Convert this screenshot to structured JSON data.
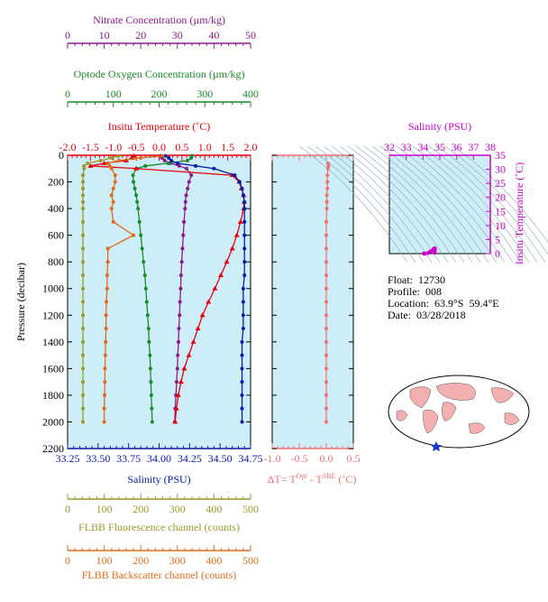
{
  "float_info": {
    "float": "Float:  12730",
    "profile": "Profile:  008",
    "location": "Location:  63.9°S  59.4°E",
    "date": "Date:  03/28/2018"
  },
  "colors": {
    "nitrate": "#8b1a8b",
    "oxygen": "#1a8a2a",
    "temperature": "#e8000b",
    "salinity": "#0a1aa8",
    "fluorescence": "#9a9a2a",
    "backscatter": "#e06a1a",
    "delta_t": "#f07070",
    "ts_axis": "#cc00cc",
    "panel_bg": "#cdeef8",
    "land": "#f4b0b0"
  },
  "axes": {
    "nitrate": {
      "label": "Nitrate Concentration (µm/kg)",
      "range": [
        0,
        50
      ],
      "ticks": [
        "0",
        "10",
        "20",
        "30",
        "40",
        "50"
      ]
    },
    "oxygen": {
      "label": "Optode Oxygen Concentration (µm/kg)",
      "range": [
        0,
        400
      ],
      "ticks": [
        "0",
        "100",
        "200",
        "300",
        "400"
      ]
    },
    "temperature": {
      "label": "Insitu Temperature (˚C)",
      "range": [
        -2.0,
        2.0
      ],
      "ticks": [
        "-2.0",
        "-1.5",
        "-1.0",
        "-0.5",
        "0.0",
        "0.5",
        "1.0",
        "1.5",
        "2.0"
      ]
    },
    "salinity": {
      "label": "Salinity (PSU)",
      "range": [
        33.25,
        34.75
      ],
      "ticks": [
        "33.25",
        "33.50",
        "33.75",
        "34.00",
        "34.25",
        "34.50",
        "34.75"
      ]
    },
    "pressure": {
      "label": "Pressure (decibar)",
      "range": [
        0,
        2200
      ],
      "ticks": [
        "0",
        "200",
        "400",
        "600",
        "800",
        "1000",
        "1200",
        "1400",
        "1600",
        "1800",
        "2000",
        "2200"
      ]
    },
    "fluorescence": {
      "label": "FLBB Fluorescence channel (counts)",
      "range": [
        0,
        500
      ],
      "ticks": [
        "0",
        "100",
        "200",
        "300",
        "400",
        "500"
      ]
    },
    "backscatter": {
      "label": "FLBB Backscatter channel (counts)",
      "range": [
        0,
        500
      ],
      "ticks": [
        "0",
        "100",
        "200",
        "300",
        "400",
        "500"
      ]
    },
    "delta_t": {
      "label_main": "ΔT= T",
      "label_sup1": "Opt",
      "label_mid": " - T",
      "label_sup2": "SBE",
      "label_end": " (˚C)",
      "range": [
        -1.0,
        0.5
      ],
      "ticks": [
        "-1.0",
        "-0.5",
        "0.0",
        "0.5"
      ]
    },
    "ts_salinity": {
      "label": "Salinity (PSU)",
      "range": [
        32,
        38
      ],
      "ticks": [
        "32",
        "33",
        "34",
        "35",
        "36",
        "37",
        "38"
      ]
    },
    "ts_temperature": {
      "label": "Insitu Temperature (˚C)",
      "range": [
        0,
        35
      ],
      "ticks": [
        "0",
        "5",
        "10",
        "15",
        "20",
        "25",
        "30",
        "35"
      ]
    }
  },
  "chart_data": [
    {
      "type": "line",
      "title": "",
      "ylabel": "Pressure (decibar)",
      "ylim": [
        0,
        2200
      ],
      "y_inverted": true,
      "pressure": [
        5,
        20,
        40,
        60,
        80,
        100,
        150,
        200,
        250,
        300,
        350,
        400,
        500,
        600,
        700,
        800,
        900,
        1000,
        1100,
        1200,
        1300,
        1400,
        1500,
        1600,
        1700,
        1800,
        1900,
        2000
      ],
      "series": [
        {
          "name": "Nitrate",
          "axis": "nitrate",
          "values": [
            25.5,
            25.8,
            26.5,
            28.0,
            30.5,
            32.5,
            33.8,
            33.2,
            32.8,
            32.4,
            32.2,
            32.1,
            31.8,
            31.6,
            31.4,
            31.2,
            31.0,
            30.9,
            30.7,
            30.6,
            30.4,
            30.3,
            30.1,
            30.0,
            29.8,
            29.6,
            29.4,
            29.3
          ]
        },
        {
          "name": "Oxygen",
          "axis": "oxygen",
          "values": [
            272,
            270,
            262,
            220,
            170,
            150,
            143,
            144,
            147,
            150,
            152,
            154,
            157,
            160,
            163,
            166,
            169,
            171,
            173,
            175,
            177,
            178,
            180,
            181,
            182,
            183,
            184,
            185
          ]
        },
        {
          "name": "Temperature",
          "axis": "temperature",
          "values": [
            -0.55,
            -0.6,
            -0.72,
            -1.2,
            -1.5,
            -0.5,
            1.6,
            1.75,
            1.8,
            1.85,
            1.86,
            1.85,
            1.78,
            1.7,
            1.6,
            1.48,
            1.35,
            1.22,
            1.08,
            0.95,
            0.85,
            0.75,
            0.65,
            0.55,
            0.48,
            0.42,
            0.38,
            0.35
          ]
        },
        {
          "name": "Salinity",
          "axis": "salinity",
          "values": [
            34.05,
            34.08,
            34.1,
            34.15,
            34.3,
            34.45,
            34.62,
            34.66,
            34.68,
            34.69,
            34.7,
            34.7,
            34.7,
            34.7,
            34.7,
            34.7,
            34.7,
            34.69,
            34.69,
            34.69,
            34.69,
            34.68,
            34.68,
            34.68,
            34.68,
            34.68,
            34.68,
            34.68
          ]
        },
        {
          "name": "Fluorescence",
          "axis": "fluorescence",
          "values": [
            140,
            120,
            90,
            55,
            45,
            45,
            42,
            42,
            42,
            42,
            42,
            42,
            42,
            42,
            42,
            42,
            42,
            42,
            42,
            42,
            42,
            42,
            42,
            42,
            42,
            42,
            42,
            42
          ]
        },
        {
          "name": "Backscatter",
          "axis": "backscatter",
          "values": [
            260,
            200,
            140,
            110,
            115,
            120,
            130,
            130,
            125,
            120,
            125,
            120,
            125,
            180,
            110,
            110,
            108,
            108,
            106,
            105,
            105,
            104,
            103,
            102,
            102,
            101,
            100,
            100
          ]
        }
      ]
    },
    {
      "type": "line",
      "title": "",
      "xlim": [
        -1.0,
        0.5
      ],
      "ylim": [
        0,
        2200
      ],
      "series": [
        {
          "name": "ΔT",
          "pressure": [
            60,
            80,
            100,
            150,
            200,
            250,
            300,
            350,
            400,
            500,
            600,
            700,
            800,
            900,
            1000,
            1100,
            1200,
            1300,
            1400,
            1500,
            1600,
            1700,
            1800,
            1900,
            2000
          ],
          "values": [
            0.03,
            0.04,
            0.03,
            0.02,
            0.02,
            0.02,
            0.01,
            0.01,
            0.01,
            0.0,
            0.0,
            0.0,
            0.0,
            0.0,
            0.0,
            0.0,
            0.0,
            0.0,
            0.0,
            0.0,
            0.0,
            0.0,
            0.0,
            0.0,
            0.0
          ]
        }
      ]
    },
    {
      "type": "scatter",
      "title": "",
      "xlabel": "Salinity (PSU)",
      "ylabel": "Insitu Temperature (˚C)",
      "xlim": [
        32,
        38
      ],
      "ylim": [
        0,
        35
      ],
      "x": [
        34.05,
        34.1,
        34.3,
        34.45,
        34.62,
        34.66,
        34.69,
        34.7,
        34.7,
        34.69,
        34.68,
        34.68
      ],
      "y": [
        0.0,
        0.0,
        0.2,
        0.8,
        1.6,
        1.75,
        1.85,
        1.8,
        1.5,
        1.0,
        0.6,
        0.35
      ]
    }
  ]
}
